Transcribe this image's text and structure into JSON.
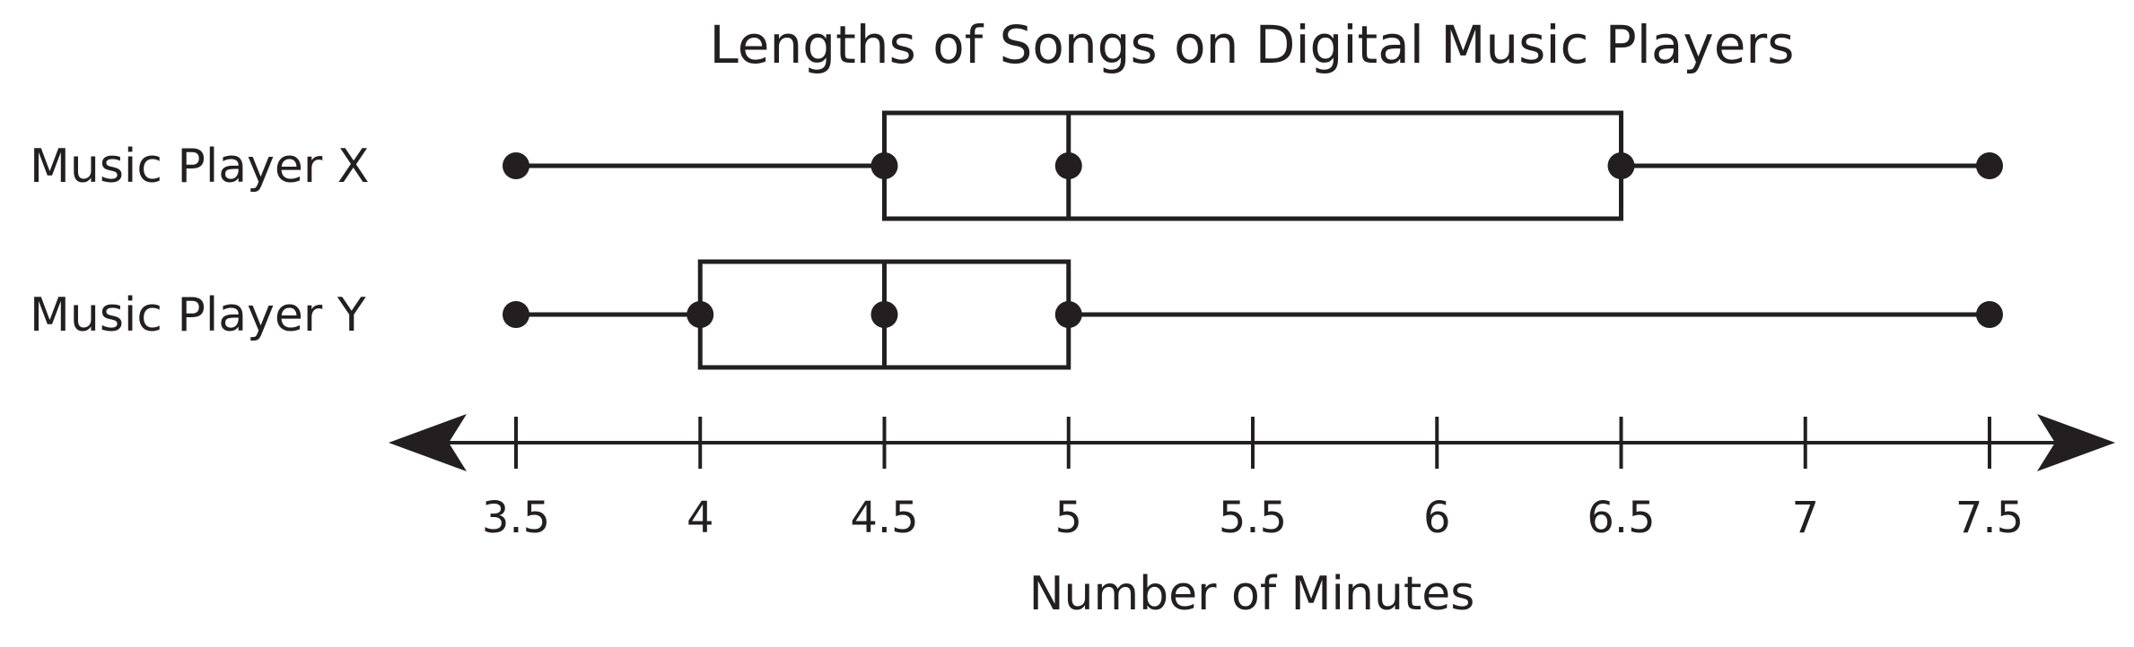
{
  "chart_data": {
    "type": "boxplot",
    "title": "Lengths of Songs on Digital Music Players",
    "xlabel": "Number of Minutes",
    "ylabel": "",
    "xlim": [
      3.5,
      7.5
    ],
    "ticks": [
      "3.5",
      "4",
      "4.5",
      "5",
      "5.5",
      "6",
      "6.5",
      "7",
      "7.5"
    ],
    "tick_values": [
      3.5,
      4,
      4.5,
      5,
      5.5,
      6,
      6.5,
      7,
      7.5
    ],
    "series": [
      {
        "name": "Music Player X",
        "min": 3.5,
        "q1": 4.5,
        "median": 5,
        "q3": 6.5,
        "max": 7.5
      },
      {
        "name": "Music Player Y",
        "min": 3.5,
        "q1": 4,
        "median": 4.5,
        "q3": 5,
        "max": 7.5
      }
    ],
    "grid": false,
    "axis_arrows": true,
    "colors": {
      "ink": "#231f20",
      "background": "#ffffff"
    }
  }
}
